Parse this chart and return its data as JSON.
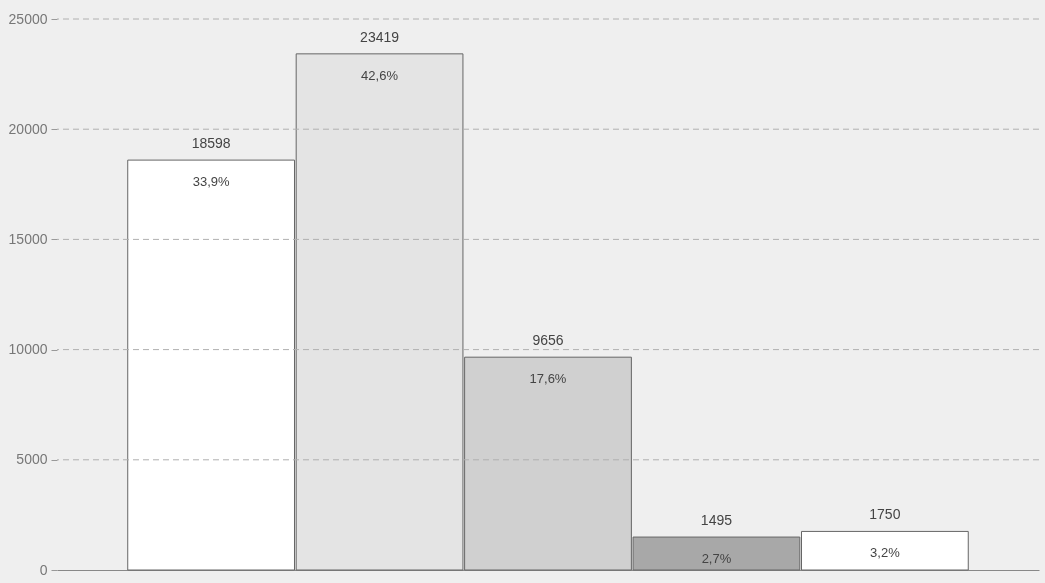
{
  "chart_data": {
    "type": "bar",
    "categories": [
      null,
      null,
      null,
      null,
      null
    ],
    "values": [
      18598,
      23419,
      9656,
      1495,
      1750
    ],
    "colors": [
      "#ffffff",
      "#e4e4e4",
      "#d0d0d0",
      "#a8a8a8",
      "#ffffff"
    ],
    "data_labels": true,
    "annotations": [
      "33,9%",
      "42,6%",
      "17,6%",
      "2,7%",
      "3,2%"
    ],
    "ylim": [
      0,
      25000
    ],
    "yticks": [
      0,
      5000,
      10000,
      15000,
      20000,
      25000
    ],
    "grid": "y",
    "line_style": "dashed"
  }
}
